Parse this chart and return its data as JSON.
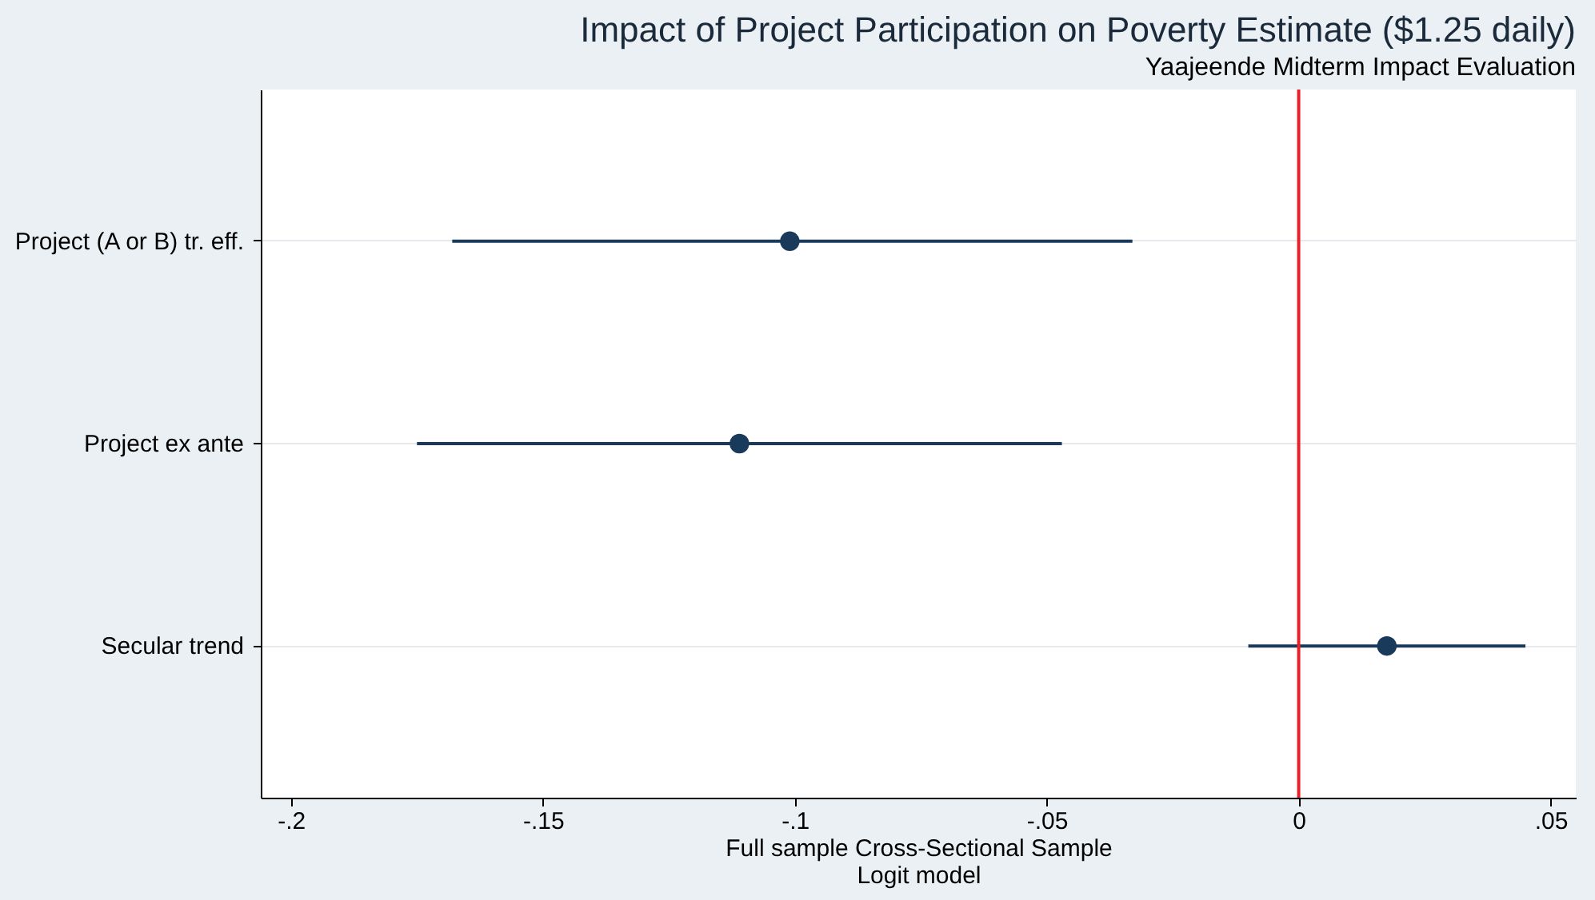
{
  "chart_data": {
    "type": "scatter",
    "title": "Impact of Project Participation on Poverty Estimate ($1.25 daily)",
    "subtitle": "Yaajeende Midterm Impact Evaluation",
    "xlabel": "Full sample Cross-Sectional Sample\nLogit model",
    "orientation": "horizontal",
    "categories": [
      "Project (A or B) tr. eff.",
      "Project ex ante",
      "Secular trend"
    ],
    "color": "#1a3a5c",
    "values": [
      -0.101,
      -0.111,
      0.0175
    ],
    "errors": [
      [
        -0.168,
        -0.033
      ],
      [
        -0.175,
        -0.047
      ],
      [
        -0.01,
        0.045
      ]
    ],
    "xlim": [
      -0.206,
      0.055
    ],
    "xticks": [
      {
        "value": -0.2,
        "label": "-.2"
      },
      {
        "value": -0.15,
        "label": "-.15"
      },
      {
        "value": -0.1,
        "label": "-.1"
      },
      {
        "value": -0.05,
        "label": "-.05"
      },
      {
        "value": 0,
        "label": "0"
      },
      {
        "value": 0.05,
        "label": ".05"
      }
    ],
    "ref_lines": [
      {
        "axis": "x",
        "value": 0,
        "color": "#e8202a"
      }
    ],
    "grid": "y",
    "marker": "circle"
  }
}
